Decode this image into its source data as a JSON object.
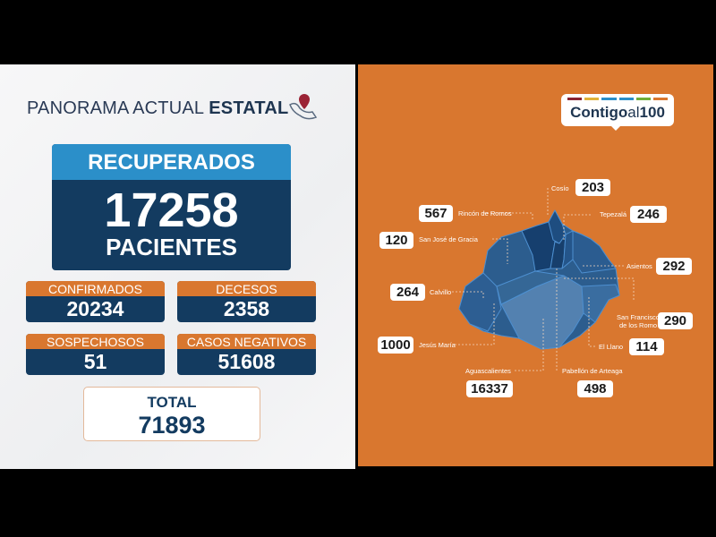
{
  "header": {
    "title_light": "PANORAMA ACTUAL ",
    "title_bold": "ESTATAL"
  },
  "recuperados": {
    "label": "RECUPERADOS",
    "value": "17258",
    "unit": "PACIENTES"
  },
  "stats": [
    {
      "label": "CONFIRMADOS",
      "value": "20234"
    },
    {
      "label": "DECESOS",
      "value": "2358"
    },
    {
      "label": "SOSPECHOSOS",
      "value": "51"
    },
    {
      "label": "CASOS NEGATIVOS",
      "value": "51608"
    }
  ],
  "total": {
    "label": "TOTAL",
    "value": "71893"
  },
  "logo": {
    "text_a": "Contigo",
    "text_b": "al",
    "text_c": "100",
    "bar_colors": [
      "#8a2332",
      "#e0b23a",
      "#2b8fc9",
      "#2b8fc9",
      "#6fae3a",
      "#d9772f"
    ]
  },
  "municipalities": [
    {
      "name": "Cosío",
      "value": "203"
    },
    {
      "name": "Rincón de Romos",
      "value": "567"
    },
    {
      "name": "Tepezalá",
      "value": "246"
    },
    {
      "name": "San José de Gracia",
      "value": "120"
    },
    {
      "name": "Asientos",
      "value": "292"
    },
    {
      "name": "Calvillo",
      "value": "264"
    },
    {
      "name": "San Francisco de los Romo",
      "value": "290"
    },
    {
      "name": "El Llano",
      "value": "114"
    },
    {
      "name": "Jesús María",
      "value": "1000"
    },
    {
      "name": "Aguascalientes",
      "value": "16337"
    },
    {
      "name": "Pabellón de Arteaga",
      "value": "498"
    }
  ],
  "colors": {
    "orange": "#d9772f",
    "navy": "#133b60",
    "blue": "#2b8fc9"
  }
}
